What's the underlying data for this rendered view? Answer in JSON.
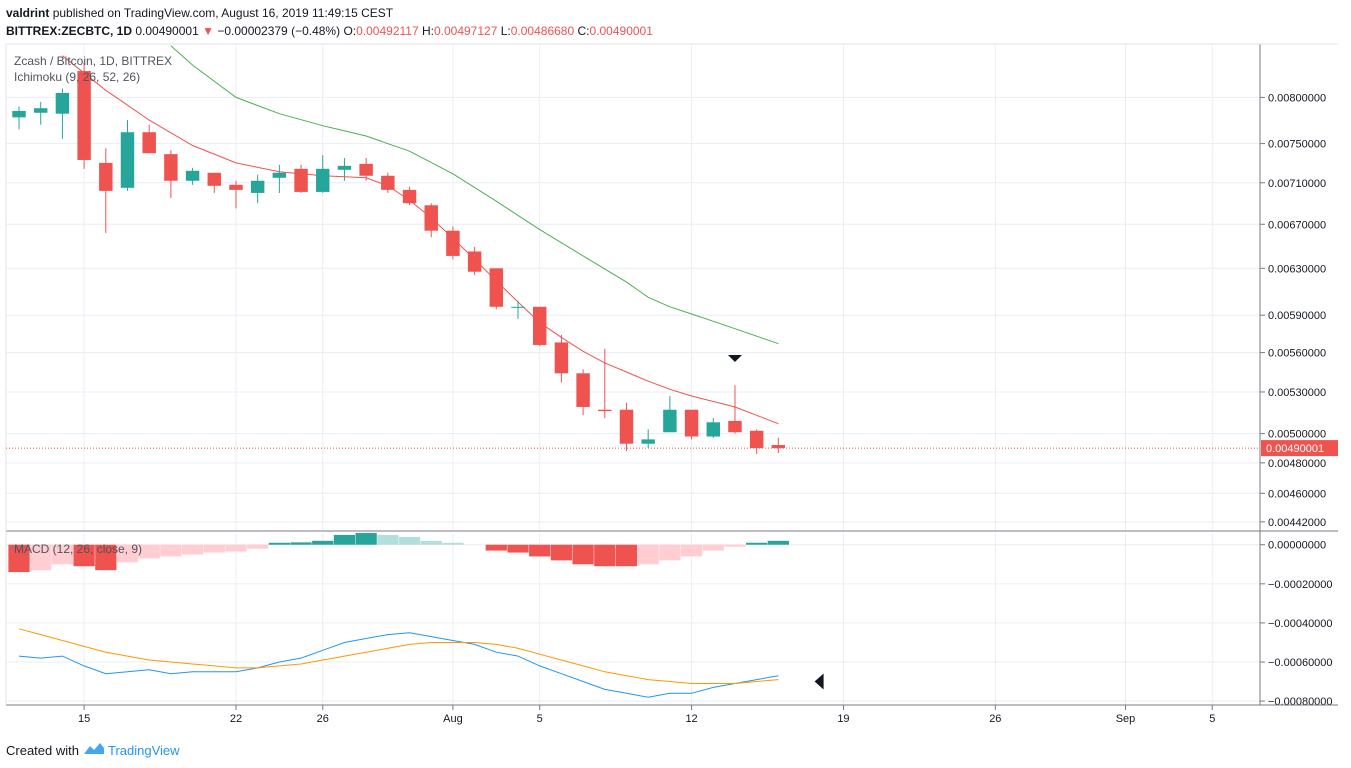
{
  "header": {
    "author": "valdrint",
    "published_text": "published on TradingView.com, August 16, 2019 11:49:15 CEST",
    "symbol": "BITTREX:ZECBTC, 1D",
    "last_price": "0.00490001",
    "change": "−0.00002379 (−0.48%)",
    "o_label": "O:",
    "o_value": "0.00492117",
    "h_label": "H:",
    "h_value": "0.00497127",
    "l_label": "L:",
    "l_value": "0.00486680",
    "c_label": "C:",
    "c_value": "0.00490001"
  },
  "footer": {
    "created_with": "Created with",
    "brand": "TradingView"
  },
  "colors": {
    "up": "#26a69a",
    "down": "#ef5350",
    "ma_fast": "#ef5350",
    "ma_slow": "#4caf50",
    "macd_line": "#2196f3",
    "signal_line": "#ff9800",
    "hist_up_strong": "#26a69a",
    "hist_up_weak": "#b2dfdb",
    "hist_down_strong": "#ef5350",
    "hist_down_weak": "#ffcdd2",
    "grid": "#e9eef5",
    "price_line": "#ef5350"
  },
  "chart_data": [
    {
      "type": "candlestick",
      "title": "Zcash / Bitcoin, 1D, BITTREX",
      "indicator_label": "Ichimoku (9, 26, 52, 26)",
      "y_scale": "log",
      "ylim": [
        0.00437,
        0.00862
      ],
      "x_tick_labels": [
        {
          "i": 3,
          "label": "15"
        },
        {
          "i": 10,
          "label": "22"
        },
        {
          "i": 14,
          "label": "26"
        },
        {
          "i": 20,
          "label": "Aug"
        },
        {
          "i": 24,
          "label": "5"
        },
        {
          "i": 31,
          "label": "12"
        },
        {
          "i": 38,
          "label": "19"
        },
        {
          "i": 45,
          "label": "26"
        },
        {
          "i": 51,
          "label": "Sep"
        },
        {
          "i": 55,
          "label": "5"
        }
      ],
      "x_range_index": [
        -0.6,
        57.2
      ],
      "y_tick_labels": [
        "0.00800000",
        "0.00750000",
        "0.00710000",
        "0.00670000",
        "0.00630000",
        "0.00590000",
        "0.00560000",
        "0.00530000",
        "0.00500000",
        "0.00480000",
        "0.00460000",
        "0.00442000"
      ],
      "y_tick_values": [
        0.008,
        0.0075,
        0.0071,
        0.0067,
        0.0063,
        0.0059,
        0.0056,
        0.0053,
        0.005,
        0.0048,
        0.0046,
        0.00442
      ],
      "last_price_label": "0.00490001",
      "last_price_value": 0.00490001,
      "candles": [
        {
          "i": 0,
          "o": 0.00778,
          "h": 0.0079,
          "l": 0.00765,
          "c": 0.00785
        },
        {
          "i": 1,
          "o": 0.00783,
          "h": 0.00795,
          "l": 0.0077,
          "c": 0.00788
        },
        {
          "i": 2,
          "o": 0.00782,
          "h": 0.0081,
          "l": 0.00755,
          "c": 0.00805
        },
        {
          "i": 3,
          "o": 0.0083,
          "h": 0.0084,
          "l": 0.00724,
          "c": 0.00733
        },
        {
          "i": 4,
          "o": 0.0073,
          "h": 0.00745,
          "l": 0.00662,
          "c": 0.00702
        },
        {
          "i": 5,
          "o": 0.00705,
          "h": 0.00775,
          "l": 0.00702,
          "c": 0.00762
        },
        {
          "i": 6,
          "o": 0.00762,
          "h": 0.0077,
          "l": 0.0074,
          "c": 0.0074
        },
        {
          "i": 7,
          "o": 0.00739,
          "h": 0.00743,
          "l": 0.00695,
          "c": 0.00712
        },
        {
          "i": 8,
          "o": 0.00712,
          "h": 0.00725,
          "l": 0.00708,
          "c": 0.00722
        },
        {
          "i": 9,
          "o": 0.0072,
          "h": 0.0072,
          "l": 0.007,
          "c": 0.00707
        },
        {
          "i": 10,
          "o": 0.00708,
          "h": 0.00712,
          "l": 0.00685,
          "c": 0.00703
        },
        {
          "i": 11,
          "o": 0.007,
          "h": 0.00718,
          "l": 0.0069,
          "c": 0.00712
        },
        {
          "i": 12,
          "o": 0.00715,
          "h": 0.00728,
          "l": 0.007,
          "c": 0.0072
        },
        {
          "i": 13,
          "o": 0.00724,
          "h": 0.00728,
          "l": 0.007,
          "c": 0.00701
        },
        {
          "i": 14,
          "o": 0.00701,
          "h": 0.00738,
          "l": 0.007,
          "c": 0.00724
        },
        {
          "i": 15,
          "o": 0.00723,
          "h": 0.00735,
          "l": 0.00712,
          "c": 0.00727
        },
        {
          "i": 16,
          "o": 0.00729,
          "h": 0.00735,
          "l": 0.00712,
          "c": 0.00717
        },
        {
          "i": 17,
          "o": 0.00717,
          "h": 0.0072,
          "l": 0.007,
          "c": 0.00703
        },
        {
          "i": 18,
          "o": 0.00703,
          "h": 0.00706,
          "l": 0.00688,
          "c": 0.0069
        },
        {
          "i": 19,
          "o": 0.00688,
          "h": 0.0069,
          "l": 0.00658,
          "c": 0.00664
        },
        {
          "i": 20,
          "o": 0.00664,
          "h": 0.00668,
          "l": 0.00638,
          "c": 0.00641
        },
        {
          "i": 21,
          "o": 0.00645,
          "h": 0.00649,
          "l": 0.00624,
          "c": 0.00627
        },
        {
          "i": 22,
          "o": 0.0063,
          "h": 0.0063,
          "l": 0.00595,
          "c": 0.00597
        },
        {
          "i": 23,
          "o": 0.00597,
          "h": 0.00602,
          "l": 0.00587,
          "c": 0.00597
        },
        {
          "i": 24,
          "o": 0.00597,
          "h": 0.00597,
          "l": 0.00565,
          "c": 0.00566
        },
        {
          "i": 25,
          "o": 0.00568,
          "h": 0.00574,
          "l": 0.00537,
          "c": 0.00544
        },
        {
          "i": 26,
          "o": 0.00544,
          "h": 0.00547,
          "l": 0.00513,
          "c": 0.00519
        },
        {
          "i": 27,
          "o": 0.00517,
          "h": 0.00563,
          "l": 0.00511,
          "c": 0.00516
        },
        {
          "i": 28,
          "o": 0.00517,
          "h": 0.00522,
          "l": 0.00488,
          "c": 0.00493
        },
        {
          "i": 29,
          "o": 0.00493,
          "h": 0.00503,
          "l": 0.0049,
          "c": 0.00496
        },
        {
          "i": 30,
          "o": 0.00501,
          "h": 0.00527,
          "l": 0.00501,
          "c": 0.00517
        },
        {
          "i": 31,
          "o": 0.00517,
          "h": 0.00517,
          "l": 0.00496,
          "c": 0.00498
        },
        {
          "i": 32,
          "o": 0.00498,
          "h": 0.00511,
          "l": 0.00497,
          "c": 0.00508
        },
        {
          "i": 33,
          "o": 0.00509,
          "h": 0.00535,
          "l": 0.005,
          "c": 0.00501
        },
        {
          "i": 34,
          "o": 0.00502,
          "h": 0.00503,
          "l": 0.00486,
          "c": 0.0049
        },
        {
          "i": 35,
          "o": 0.00492117,
          "h": 0.00497127,
          "l": 0.0048668,
          "c": 0.00490001
        }
      ],
      "series": [
        {
          "name": "",
          "color_key": "ma_fast",
          "points": [
            [
              2,
              0.00848
            ],
            [
              4,
              0.00808
            ],
            [
              6,
              0.00775
            ],
            [
              8,
              0.00748
            ],
            [
              10,
              0.0073
            ],
            [
              12,
              0.00721
            ],
            [
              14,
              0.00717
            ],
            [
              16,
              0.00715
            ],
            [
              17,
              0.00707
            ],
            [
              18,
              0.00693
            ],
            [
              19,
              0.00676
            ],
            [
              20,
              0.00657
            ],
            [
              21,
              0.00638
            ],
            [
              22,
              0.00619
            ],
            [
              23,
              0.00601
            ],
            [
              24,
              0.00584
            ],
            [
              25,
              0.00572
            ],
            [
              26,
              0.00561
            ],
            [
              27,
              0.00552
            ],
            [
              28,
              0.00545
            ],
            [
              29,
              0.00538
            ],
            [
              30,
              0.00532
            ],
            [
              31,
              0.00527
            ],
            [
              32,
              0.00523
            ],
            [
              33,
              0.00519
            ],
            [
              34,
              0.00513
            ],
            [
              35,
              0.00507
            ]
          ]
        },
        {
          "name": "",
          "color_key": "ma_slow",
          "points": [
            [
              7,
              0.0086
            ],
            [
              8,
              0.00837
            ],
            [
              10,
              0.008
            ],
            [
              12,
              0.00782
            ],
            [
              14,
              0.00769
            ],
            [
              16,
              0.00758
            ],
            [
              18,
              0.00742
            ],
            [
              20,
              0.00719
            ],
            [
              22,
              0.00692
            ],
            [
              24,
              0.00665
            ],
            [
              26,
              0.00641
            ],
            [
              28,
              0.00618
            ],
            [
              29,
              0.00605
            ],
            [
              30,
              0.00597
            ],
            [
              31,
              0.00591
            ],
            [
              32,
              0.00585
            ],
            [
              33,
              0.00579
            ],
            [
              34,
              0.00573
            ],
            [
              35,
              0.00567
            ]
          ]
        }
      ],
      "annotations": [
        {
          "type": "down-arrow",
          "i": 33,
          "y": 0.00555
        }
      ]
    },
    {
      "type": "macd",
      "title": "MACD (12, 26, close, 9)",
      "ylim": [
        -0.00082,
        6e-05
      ],
      "y_tick_labels": [
        "0.00000000",
        "−0.00020000",
        "−0.00040000",
        "−0.00060000",
        "−0.00080000"
      ],
      "y_tick_values": [
        0,
        -0.0002,
        -0.0004,
        -0.0006,
        -0.0008
      ],
      "histogram": [
        [
          0,
          -0.00014
        ],
        [
          1,
          -0.00013
        ],
        [
          2,
          -0.0001
        ],
        [
          3,
          -0.00011
        ],
        [
          4,
          -0.00013
        ],
        [
          5,
          -9e-05
        ],
        [
          6,
          -7e-05
        ],
        [
          7,
          -6e-05
        ],
        [
          8,
          -5e-05
        ],
        [
          9,
          -4e-05
        ],
        [
          10,
          -3.5e-05
        ],
        [
          11,
          -2e-05
        ],
        [
          12,
          1e-05
        ],
        [
          13,
          1.2e-05
        ],
        [
          14,
          2e-05
        ],
        [
          15,
          5e-05
        ],
        [
          16,
          6e-05
        ],
        [
          17,
          5e-05
        ],
        [
          18,
          4e-05
        ],
        [
          19,
          2e-05
        ],
        [
          20,
          1e-05
        ],
        [
          22,
          -3e-05
        ],
        [
          23,
          -4e-05
        ],
        [
          24,
          -6e-05
        ],
        [
          25,
          -8e-05
        ],
        [
          26,
          -0.0001
        ],
        [
          27,
          -0.00011
        ],
        [
          28,
          -0.00011
        ],
        [
          29,
          -0.0001
        ],
        [
          30,
          -8e-05
        ],
        [
          31,
          -6e-05
        ],
        [
          32,
          -3e-05
        ],
        [
          33,
          -1e-05
        ],
        [
          34,
          1e-05
        ],
        [
          35,
          2e-05
        ]
      ],
      "series": [
        {
          "name": "",
          "color_key": "macd_line",
          "points": [
            [
              0,
              -0.00057
            ],
            [
              1,
              -0.00058
            ],
            [
              2,
              -0.00057
            ],
            [
              3,
              -0.00062
            ],
            [
              4,
              -0.00066
            ],
            [
              5,
              -0.00065
            ],
            [
              6,
              -0.00064
            ],
            [
              7,
              -0.00066
            ],
            [
              8,
              -0.00065
            ],
            [
              9,
              -0.00065
            ],
            [
              10,
              -0.00065
            ],
            [
              11,
              -0.00063
            ],
            [
              12,
              -0.0006
            ],
            [
              13,
              -0.00058
            ],
            [
              14,
              -0.00054
            ],
            [
              15,
              -0.0005
            ],
            [
              16,
              -0.00048
            ],
            [
              17,
              -0.00046
            ],
            [
              18,
              -0.00045
            ],
            [
              19,
              -0.00047
            ],
            [
              20,
              -0.00049
            ],
            [
              21,
              -0.00051
            ],
            [
              22,
              -0.00055
            ],
            [
              23,
              -0.00057
            ],
            [
              24,
              -0.00062
            ],
            [
              25,
              -0.00066
            ],
            [
              26,
              -0.0007
            ],
            [
              27,
              -0.00074
            ],
            [
              28,
              -0.00076
            ],
            [
              29,
              -0.00078
            ],
            [
              30,
              -0.00076
            ],
            [
              31,
              -0.00076
            ],
            [
              32,
              -0.00073
            ],
            [
              33,
              -0.00071
            ],
            [
              34,
              -0.00069
            ],
            [
              35,
              -0.00067
            ]
          ]
        },
        {
          "name": "",
          "color_key": "signal_line",
          "points": [
            [
              0,
              -0.00043
            ],
            [
              1,
              -0.00046
            ],
            [
              2,
              -0.00049
            ],
            [
              3,
              -0.00052
            ],
            [
              4,
              -0.00055
            ],
            [
              5,
              -0.00057
            ],
            [
              6,
              -0.00059
            ],
            [
              7,
              -0.0006
            ],
            [
              8,
              -0.00061
            ],
            [
              9,
              -0.00062
            ],
            [
              10,
              -0.00063
            ],
            [
              11,
              -0.00063
            ],
            [
              12,
              -0.00062
            ],
            [
              13,
              -0.00061
            ],
            [
              14,
              -0.00059
            ],
            [
              15,
              -0.00057
            ],
            [
              16,
              -0.00055
            ],
            [
              17,
              -0.00053
            ],
            [
              18,
              -0.00051
            ],
            [
              19,
              -0.0005
            ],
            [
              20,
              -0.0005
            ],
            [
              21,
              -0.0005
            ],
            [
              22,
              -0.00051
            ],
            [
              23,
              -0.00053
            ],
            [
              24,
              -0.00056
            ],
            [
              25,
              -0.00059
            ],
            [
              26,
              -0.00062
            ],
            [
              27,
              -0.00065
            ],
            [
              28,
              -0.00067
            ],
            [
              29,
              -0.00069
            ],
            [
              30,
              -0.0007
            ],
            [
              31,
              -0.00071
            ],
            [
              32,
              -0.00071
            ],
            [
              33,
              -0.00071
            ],
            [
              34,
              -0.0007
            ],
            [
              35,
              -0.00069
            ]
          ]
        }
      ],
      "annotations": [
        {
          "type": "left-arrow",
          "i": 36.9,
          "y": -0.0007
        }
      ]
    }
  ]
}
